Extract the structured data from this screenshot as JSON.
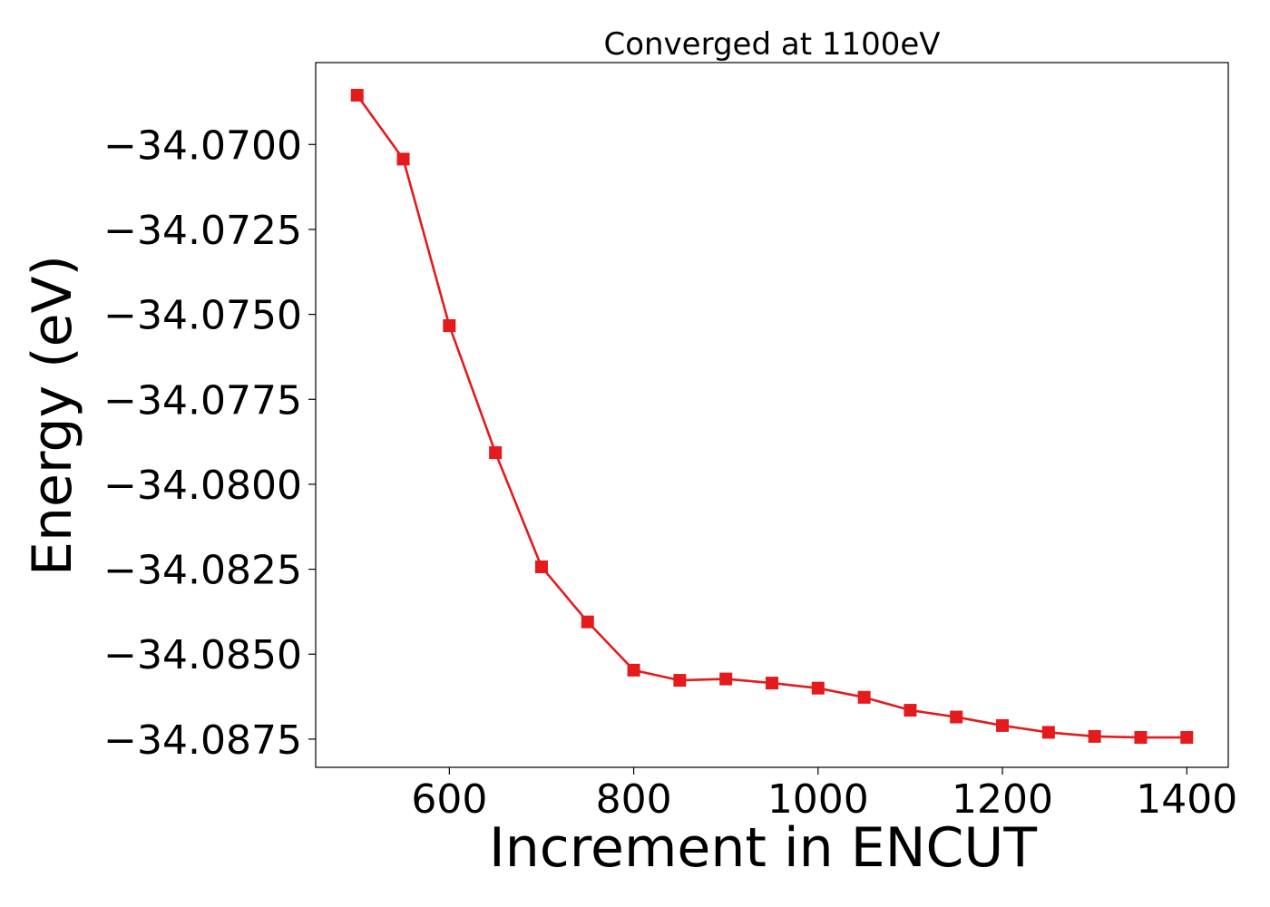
{
  "chart_data": {
    "type": "line",
    "title": "Converged at 1100eV",
    "xlabel": "Increment in ENCUT",
    "ylabel": "Energy (eV)",
    "x": [
      500,
      550,
      600,
      650,
      700,
      750,
      800,
      850,
      900,
      950,
      1000,
      1050,
      1100,
      1150,
      1200,
      1250,
      1300,
      1350,
      1400
    ],
    "series": [
      {
        "values": [
          -34.06855,
          -34.07043,
          -34.07533,
          -34.07907,
          -34.08243,
          -34.08405,
          -34.08547,
          -34.08577,
          -34.08573,
          -34.08585,
          -34.086,
          -34.08627,
          -34.08665,
          -34.08685,
          -34.0871,
          -34.0873,
          -34.08742,
          -34.08745,
          -34.08745
        ],
        "color": "#e41a1c",
        "marker": "square"
      }
    ],
    "xlim": [
      455,
      1445
    ],
    "ylim": [
      -34.08833,
      -34.06759
    ],
    "xticks": [
      600,
      800,
      1000,
      1200,
      1400
    ],
    "xtick_labels": [
      "600",
      "800",
      "1000",
      "1200",
      "1400"
    ],
    "yticks": [
      -34.07,
      -34.0725,
      -34.075,
      -34.0775,
      -34.08,
      -34.0825,
      -34.085,
      -34.0875
    ],
    "ytick_labels": [
      "−34.0700",
      "−34.0725",
      "−34.0750",
      "−34.0775",
      "−34.0800",
      "−34.0825",
      "−34.0850",
      "−34.0875"
    ],
    "grid": false,
    "legend": false
  }
}
